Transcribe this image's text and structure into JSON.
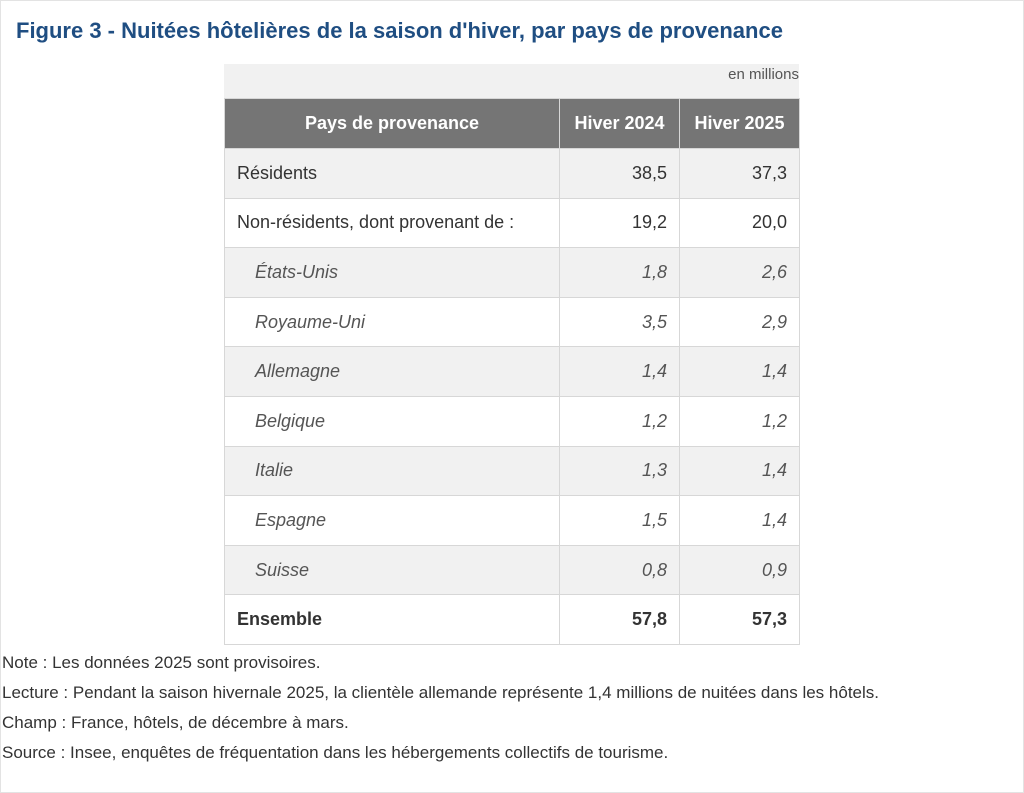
{
  "title": "Figure 3 - Nuitées hôtelières de la saison d'hiver, par pays de provenance",
  "unit": "en millions",
  "table": {
    "headers": [
      "Pays de provenance",
      "Hiver 2024",
      "Hiver 2025"
    ],
    "rows": [
      {
        "label": "Résidents",
        "h2024": "38,5",
        "h2025": "37,3"
      },
      {
        "label": "Non-résidents, dont provenant de :",
        "h2024": "19,2",
        "h2025": "20,0"
      },
      {
        "label": "États-Unis",
        "h2024": "1,8",
        "h2025": "2,6"
      },
      {
        "label": "Royaume-Uni",
        "h2024": "3,5",
        "h2025": "2,9"
      },
      {
        "label": "Allemagne",
        "h2024": "1,4",
        "h2025": "1,4"
      },
      {
        "label": "Belgique",
        "h2024": "1,2",
        "h2025": "1,2"
      },
      {
        "label": "Italie",
        "h2024": "1,3",
        "h2025": "1,4"
      },
      {
        "label": "Espagne",
        "h2024": "1,5",
        "h2025": "1,4"
      },
      {
        "label": "Suisse",
        "h2024": "0,8",
        "h2025": "0,9"
      },
      {
        "label": "Ensemble",
        "h2024": "57,8",
        "h2025": "57,3"
      }
    ]
  },
  "notes": {
    "note": "Note : Les données 2025 sont provisoires.",
    "lecture": "Lecture : Pendant la saison hivernale 2025, la clientèle allemande représente 1,4 millions de nuitées dans les hôtels.",
    "champ": "Champ : France, hôtels, de décembre à mars.",
    "source": "Source : Insee, enquêtes de fréquentation dans les hébergements collectifs de tourisme."
  }
}
